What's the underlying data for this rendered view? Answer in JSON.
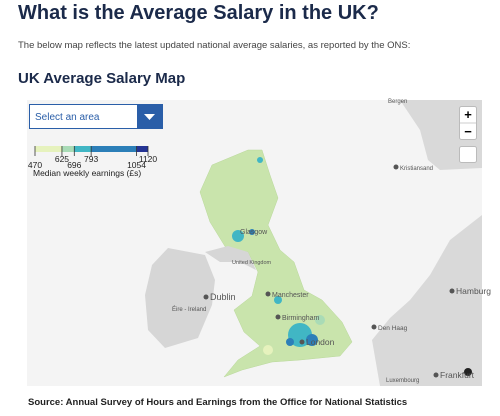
{
  "header": {
    "title": "What is the Average Salary in the UK?",
    "intro": "The below map reflects the latest updated national average salaries, as reported by the ONS:"
  },
  "map": {
    "heading": "UK Average Salary Map",
    "dropdown": "Select an area",
    "legend": {
      "title": "Median weekly earnings (£s)",
      "breaks": [
        470,
        625,
        696,
        793,
        1054,
        1120
      ],
      "colors": [
        "#e6f2bd",
        "#a9dbb6",
        "#41b6c4",
        "#2c7fb8",
        "#253494"
      ]
    },
    "labels": [
      "Bergen",
      "Kristiansand",
      "Glasgow",
      "United Kingdom",
      "Manchester",
      "Dublin",
      "Éire - Ireland",
      "Birmingham",
      "London",
      "Den Haag",
      "Hamburg",
      "Luxembourg",
      "Frankfurt"
    ],
    "zoom_in": "+",
    "zoom_out": "−"
  },
  "source": "Source: Annual Survey of Hours and Earnings from the Office for National Statistics"
}
